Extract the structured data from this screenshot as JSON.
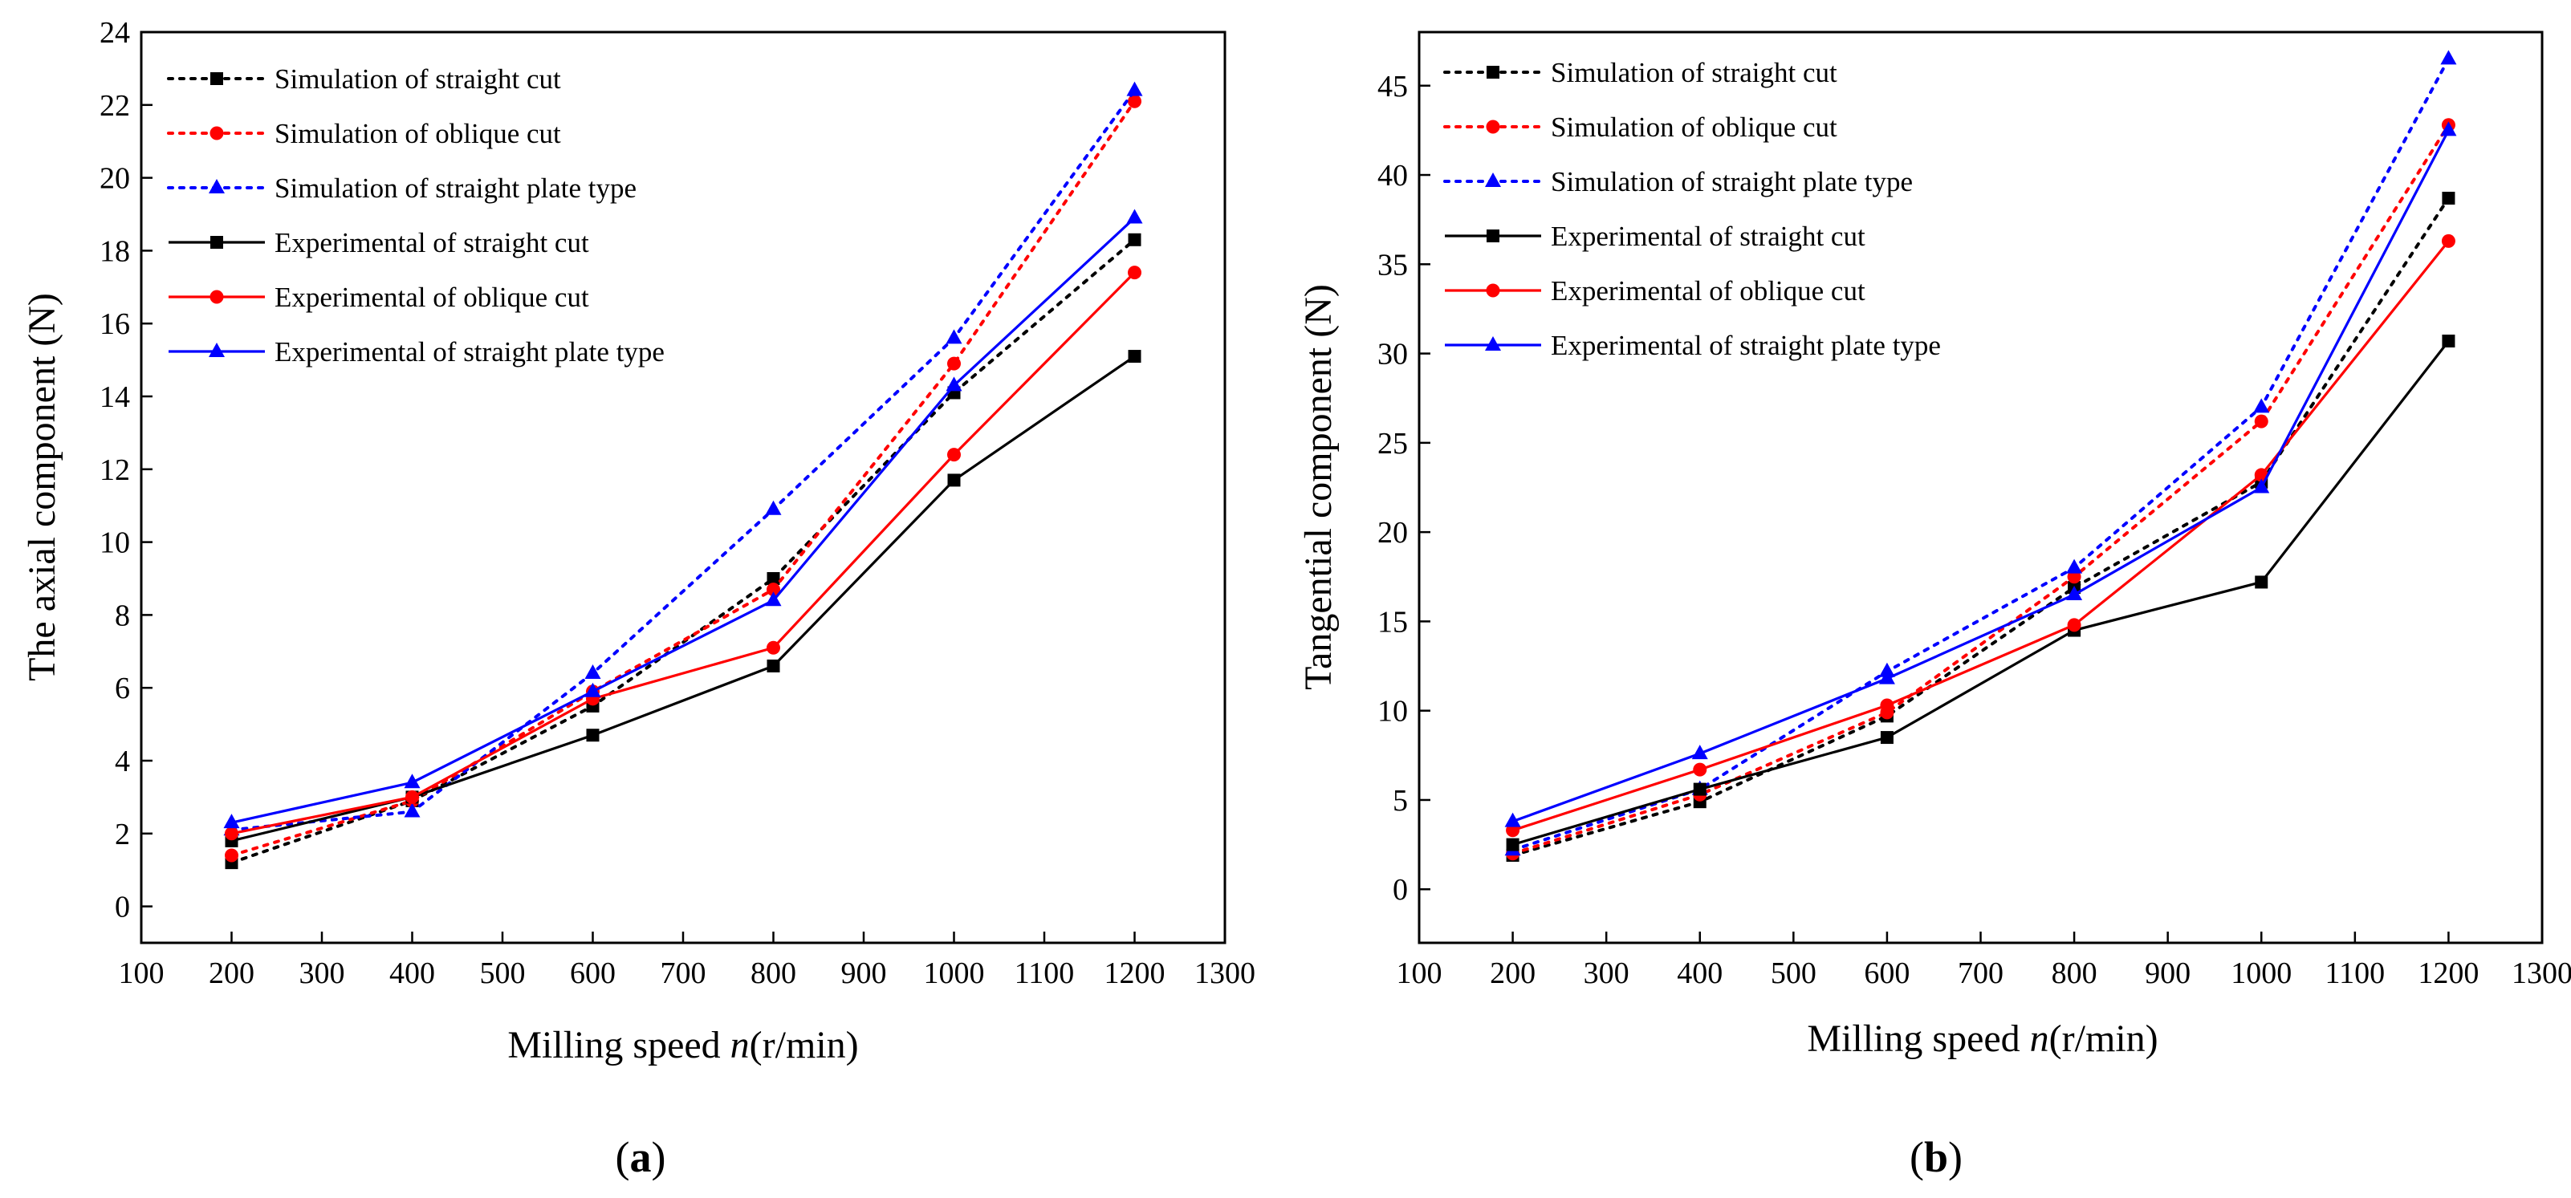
{
  "chart_data": [
    {
      "panel": "a",
      "type": "line",
      "xlabel": "Milling speed ",
      "xlabel_var": "n",
      "xlabel_unit": "(r/min)",
      "ylabel": "The axial component (N)",
      "xlim": [
        100,
        1300
      ],
      "ylim": [
        -1,
        24
      ],
      "xticks": [
        100,
        200,
        300,
        400,
        500,
        600,
        700,
        800,
        900,
        1000,
        1100,
        1200,
        1300
      ],
      "yticks": [
        0,
        2,
        4,
        6,
        8,
        10,
        12,
        14,
        16,
        18,
        20,
        22,
        24
      ],
      "x": [
        200,
        400,
        600,
        800,
        1000,
        1200
      ],
      "legend_position": "top-left",
      "series": [
        {
          "name": "Simulation of straight cut",
          "color": "#000000",
          "style": "dotted",
          "marker": "square",
          "values": [
            1.2,
            2.9,
            5.5,
            9.0,
            14.1,
            18.3
          ]
        },
        {
          "name": "Simulation of oblique cut",
          "color": "#ff0000",
          "style": "dotted",
          "marker": "circle",
          "values": [
            1.4,
            2.9,
            5.9,
            8.7,
            14.9,
            22.1
          ]
        },
        {
          "name": "Simulation of straight plate type",
          "color": "#0000ff",
          "style": "dotted",
          "marker": "triangle",
          "values": [
            2.1,
            2.6,
            6.4,
            10.9,
            15.6,
            22.4
          ]
        },
        {
          "name": "Experimental of straight cut",
          "color": "#000000",
          "style": "solid",
          "marker": "square",
          "values": [
            1.8,
            3.0,
            4.7,
            6.6,
            11.7,
            15.1
          ]
        },
        {
          "name": "Experimental of oblique cut",
          "color": "#ff0000",
          "style": "solid",
          "marker": "circle",
          "values": [
            2.0,
            3.0,
            5.7,
            7.1,
            12.4,
            17.4
          ]
        },
        {
          "name": "Experimental of straight plate type",
          "color": "#0000ff",
          "style": "solid",
          "marker": "triangle",
          "values": [
            2.3,
            3.4,
            5.9,
            8.4,
            14.3,
            18.9
          ]
        }
      ]
    },
    {
      "panel": "b",
      "type": "line",
      "xlabel": "Milling speed ",
      "xlabel_var": "n",
      "xlabel_unit": "(r/min)",
      "ylabel": "Tangential component (N)",
      "xlim": [
        100,
        1300
      ],
      "ylim": [
        -3,
        48
      ],
      "xticks": [
        100,
        200,
        300,
        400,
        500,
        600,
        700,
        800,
        900,
        1000,
        1100,
        1200,
        1300
      ],
      "yticks": [
        0,
        5,
        10,
        15,
        20,
        25,
        30,
        35,
        40,
        45
      ],
      "x": [
        200,
        400,
        600,
        800,
        1000,
        1200
      ],
      "legend_position": "top-left",
      "series": [
        {
          "name": "Simulation of straight cut",
          "color": "#000000",
          "style": "dotted",
          "marker": "square",
          "values": [
            1.9,
            4.9,
            9.7,
            16.9,
            22.8,
            38.7
          ]
        },
        {
          "name": "Simulation of oblique cut",
          "color": "#ff0000",
          "style": "dotted",
          "marker": "circle",
          "values": [
            2.0,
            5.3,
            9.9,
            17.5,
            26.2,
            42.8
          ]
        },
        {
          "name": "Simulation of straight plate type",
          "color": "#0000ff",
          "style": "dotted",
          "marker": "triangle",
          "values": [
            2.2,
            5.6,
            12.2,
            18.0,
            27.0,
            46.5
          ]
        },
        {
          "name": "Experimental of straight cut",
          "color": "#000000",
          "style": "solid",
          "marker": "square",
          "values": [
            2.5,
            5.6,
            8.5,
            14.5,
            17.2,
            30.7
          ]
        },
        {
          "name": "Experimental of oblique cut",
          "color": "#ff0000",
          "style": "solid",
          "marker": "circle",
          "values": [
            3.3,
            6.7,
            10.3,
            14.8,
            23.2,
            36.3
          ]
        },
        {
          "name": "Experimental of straight plate type",
          "color": "#0000ff",
          "style": "solid",
          "marker": "triangle",
          "values": [
            3.8,
            7.6,
            11.8,
            16.5,
            22.5,
            42.5
          ]
        }
      ]
    }
  ],
  "panel_labels": [
    "a",
    "b"
  ]
}
